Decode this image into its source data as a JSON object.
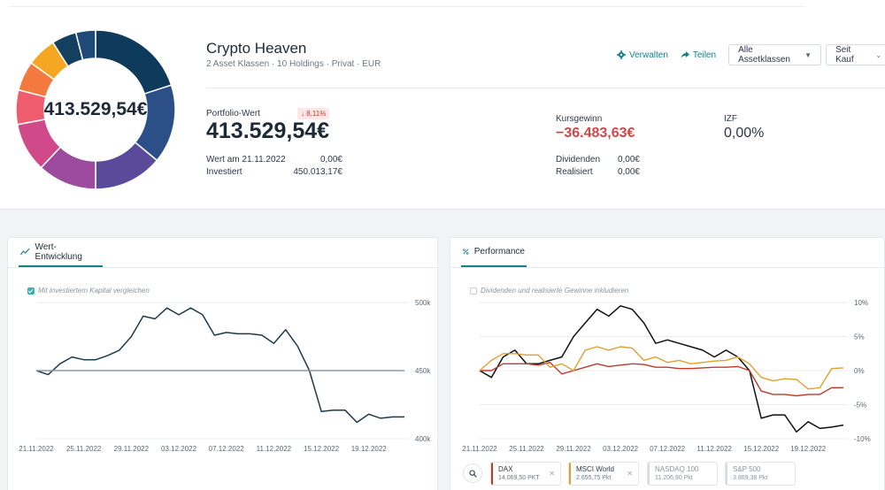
{
  "portfolio": {
    "name": "Crypto Heaven",
    "subtitle": "2 Asset Klassen · 10 Holdings · Privat · EUR",
    "donut_total": "413.529,54€",
    "donut_segments": [
      {
        "color": "#0e3a5c",
        "fraction": 0.2
      },
      {
        "color": "#2b4f86",
        "fraction": 0.16
      },
      {
        "color": "#5a4b9a",
        "fraction": 0.14
      },
      {
        "color": "#9b4a9e",
        "fraction": 0.12
      },
      {
        "color": "#d04a8a",
        "fraction": 0.1
      },
      {
        "color": "#ee5c6e",
        "fraction": 0.07
      },
      {
        "color": "#f4793f",
        "fraction": 0.06
      },
      {
        "color": "#f5a623",
        "fraction": 0.06
      },
      {
        "color": "#153f5e",
        "fraction": 0.05
      },
      {
        "color": "#1f4a78",
        "fraction": 0.04
      }
    ]
  },
  "actions": {
    "manage": "Verwalten",
    "share": "Teilen",
    "asset_filter": "Alle Assetklassen",
    "period": "Seit Kauf"
  },
  "stats": {
    "value_label": "Portfolio-Wert",
    "value": "413.529,54€",
    "change_badge": "↓ 8,11%",
    "date_label": "Wert am 21.11.2022",
    "date_value": "0,00€",
    "invested_label": "Investiert",
    "invested_value": "450.013,17€",
    "gain_label": "Kursgewinn",
    "gain_value": "−36.483,63€",
    "dividends_label": "Dividenden",
    "dividends_value": "0,00€",
    "realized_label": "Realisiert",
    "realized_value": "0,00€",
    "izf_label": "IZF",
    "izf_value": "0,00%"
  },
  "value_panel": {
    "tab": "Wert-Entwicklung",
    "checkbox": "Mit investiertem Kapital vergleichen",
    "checked": true
  },
  "perf_panel": {
    "tab": "Performance",
    "checkbox": "Dividenden und realisierte Gewinne inkludieren",
    "checked": false
  },
  "benchmarks": [
    {
      "name": "DAX",
      "value": "14.069,50 PKT",
      "color": "#c0392b",
      "active": true
    },
    {
      "name": "MSCI World",
      "value": "2.655,75 Pkt",
      "color": "#e0a030",
      "active": true
    },
    {
      "name": "NASDAQ 100",
      "value": "11.206,90 Pkt",
      "color": "#d5dbe1",
      "active": false
    },
    {
      "name": "S&P 500",
      "value": "3.869,38 Pkt",
      "color": "#d5dbe1",
      "active": false
    }
  ],
  "chart_data": [
    {
      "type": "line",
      "x": [
        "21.11.2022",
        "22.11.2022",
        "23.11.2022",
        "24.11.2022",
        "25.11.2022",
        "26.11.2022",
        "27.11.2022",
        "28.11.2022",
        "29.11.2022",
        "30.11.2022",
        "01.12.2022",
        "02.12.2022",
        "03.12.2022",
        "04.12.2022",
        "05.12.2022",
        "06.12.2022",
        "07.12.2022",
        "08.12.2022",
        "09.12.2022",
        "10.12.2022",
        "11.12.2022",
        "12.12.2022",
        "13.12.2022",
        "14.12.2022",
        "15.12.2022",
        "16.12.2022",
        "17.12.2022",
        "18.12.2022",
        "19.12.2022",
        "20.12.2022",
        "21.12.2022",
        "22.12.2022"
      ],
      "x_ticks": [
        "21.11.2022",
        "25.11.2022",
        "29.11.2022",
        "03.12.2022",
        "07.12.2022",
        "11.12.2022",
        "15.12.2022",
        "19.12.2022"
      ],
      "series": [
        {
          "name": "",
          "color": "#1e3a4a",
          "values": [
            450,
            447,
            455,
            460,
            458,
            458,
            461,
            465,
            475,
            490,
            488,
            496,
            491,
            496,
            491,
            476,
            478,
            477,
            477,
            476,
            470,
            480,
            468,
            450,
            420,
            421,
            421,
            412,
            418,
            415,
            416,
            416
          ]
        },
        {
          "name": "",
          "color": "#8a9aa5",
          "values": [
            450,
            450,
            450,
            450,
            450,
            450,
            450,
            450,
            450,
            450,
            450,
            450,
            450,
            450,
            450,
            450,
            450,
            450,
            450,
            450,
            450,
            450,
            450,
            450,
            450,
            450,
            450,
            450,
            450,
            450,
            450,
            450
          ]
        }
      ],
      "y_ticks": [
        "400k",
        "450k",
        "500k"
      ],
      "ylim": [
        400,
        500
      ]
    },
    {
      "type": "line",
      "x": [
        "21.11.2022",
        "22.11.2022",
        "23.11.2022",
        "24.11.2022",
        "25.11.2022",
        "26.11.2022",
        "27.11.2022",
        "28.11.2022",
        "29.11.2022",
        "30.11.2022",
        "01.12.2022",
        "02.12.2022",
        "03.12.2022",
        "04.12.2022",
        "05.12.2022",
        "06.12.2022",
        "07.12.2022",
        "08.12.2022",
        "09.12.2022",
        "10.12.2022",
        "11.12.2022",
        "12.12.2022",
        "13.12.2022",
        "14.12.2022",
        "15.12.2022",
        "16.12.2022",
        "17.12.2022",
        "18.12.2022",
        "19.12.2022",
        "20.12.2022",
        "21.12.2022",
        "22.12.2022"
      ],
      "x_ticks": [
        "21.11.2022",
        "25.11.2022",
        "29.11.2022",
        "03.12.2022",
        "07.12.2022",
        "11.12.2022",
        "15.12.2022",
        "19.12.2022"
      ],
      "series": [
        {
          "name": "",
          "color": "#111111",
          "values": [
            0,
            -1,
            2,
            3,
            1,
            1,
            1.5,
            2,
            5,
            7,
            9,
            8,
            9.5,
            9,
            7,
            4,
            4.5,
            4,
            3.5,
            3,
            2,
            3,
            2,
            0,
            -7,
            -6.5,
            -6.5,
            -9,
            -7.5,
            -8.5,
            -8.3,
            -8
          ]
        },
        {
          "name": "DAX",
          "color": "#c0392b",
          "values": [
            0,
            0,
            1,
            1,
            1,
            0.8,
            1.2,
            -0.5,
            0,
            0.5,
            1,
            0.6,
            0.8,
            1,
            0.9,
            0.5,
            0.5,
            0.3,
            0.3,
            0.4,
            0.5,
            0.5,
            0.6,
            0,
            -3,
            -3.5,
            -3.5,
            -3.7,
            -3.5,
            -3.5,
            -2.5,
            -2.5
          ]
        },
        {
          "name": "MSCI World",
          "color": "#e0a030",
          "values": [
            0,
            1.5,
            2.5,
            2.5,
            2.3,
            2.3,
            0.5,
            1,
            0,
            3,
            3.5,
            3,
            3.5,
            3.3,
            1.5,
            2,
            1.2,
            1.5,
            1,
            1.2,
            1.4,
            1.5,
            2,
            1,
            -1,
            -1.5,
            -1.2,
            -1.3,
            -2.7,
            -2.5,
            0.3,
            0.4
          ]
        }
      ],
      "y_ticks": [
        "10%",
        "5%",
        "0%",
        "-5%",
        "-10%"
      ],
      "ylim": [
        -10,
        10
      ]
    }
  ]
}
